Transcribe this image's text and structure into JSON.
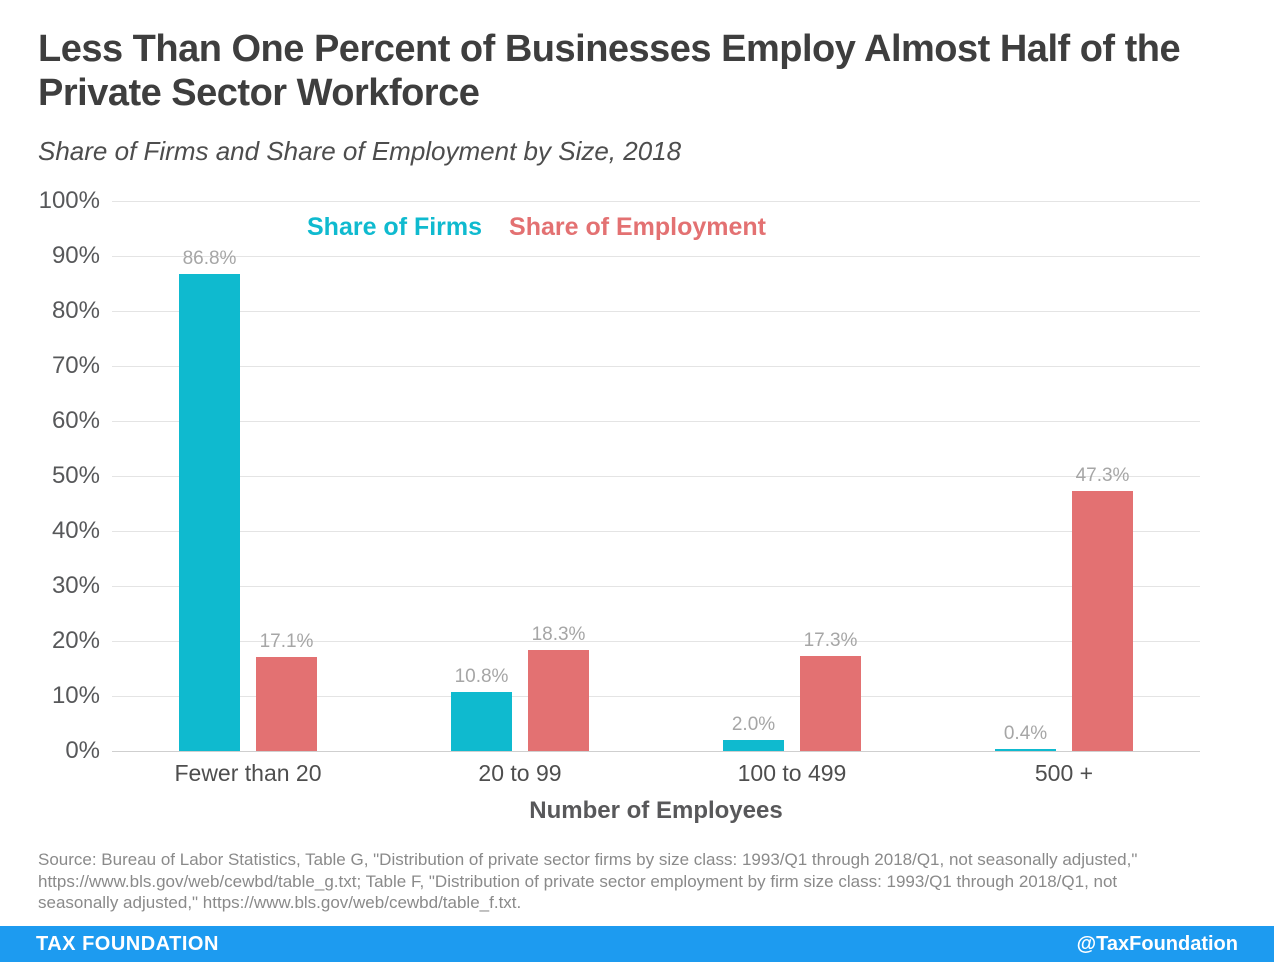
{
  "header": {
    "title_lines": [
      "Less Than One Percent of Businesses Employ Almost Half of the",
      "Private Sector Workforce"
    ],
    "subtitle": "Share of Firms and Share of Employment by Size, 2018"
  },
  "chart_data": {
    "type": "bar",
    "title": "Less Than One Percent of Businesses Employ Almost Half of the Private Sector Workforce",
    "subtitle": "Share of Firms and Share of Employment by Size, 2018",
    "categories": [
      "Fewer than 20",
      "20 to 99",
      "100 to 499",
      "500 +"
    ],
    "series": [
      {
        "name": "Share of Firms",
        "color": "#0fbacf",
        "values": [
          86.8,
          10.8,
          2.0,
          0.4
        ],
        "value_labels": [
          "86.8%",
          "10.8%",
          "2.0%",
          "0.4%"
        ]
      },
      {
        "name": "Share of Employment",
        "color": "#e37172",
        "values": [
          17.1,
          18.3,
          17.3,
          47.3
        ],
        "value_labels": [
          "17.1%",
          "18.3%",
          "17.3%",
          "47.3%"
        ]
      }
    ],
    "xlabel": "Number of Employees",
    "ylabel": "",
    "ylim": [
      0,
      100
    ],
    "yticks": [
      0,
      10,
      20,
      30,
      40,
      50,
      60,
      70,
      80,
      90,
      100
    ],
    "ytick_labels": [
      "0%",
      "10%",
      "20%",
      "30%",
      "40%",
      "50%",
      "60%",
      "70%",
      "80%",
      "90%",
      "100%"
    ],
    "grid": "horizontal",
    "legend_position": "top-inside",
    "value_label_color": "#a6a6a6",
    "gridline_color": "#e4e4e4"
  },
  "source": {
    "lines": [
      "Source: Bureau of Labor Statistics, Table G, \"Distribution of private sector firms by size class: 1993/Q1 through 2018/Q1, not seasonally adjusted,\"",
      "https://www.bls.gov/web/cewbd/table_g.txt; Table F, \"Distribution of private sector employment by firm size class: 1993/Q1 through 2018/Q1, not",
      "seasonally adjusted,\" https://www.bls.gov/web/cewbd/table_f.txt."
    ]
  },
  "footer": {
    "left": "TAX FOUNDATION",
    "right": "@TaxFoundation",
    "bar_color": "#1d9bf0"
  }
}
